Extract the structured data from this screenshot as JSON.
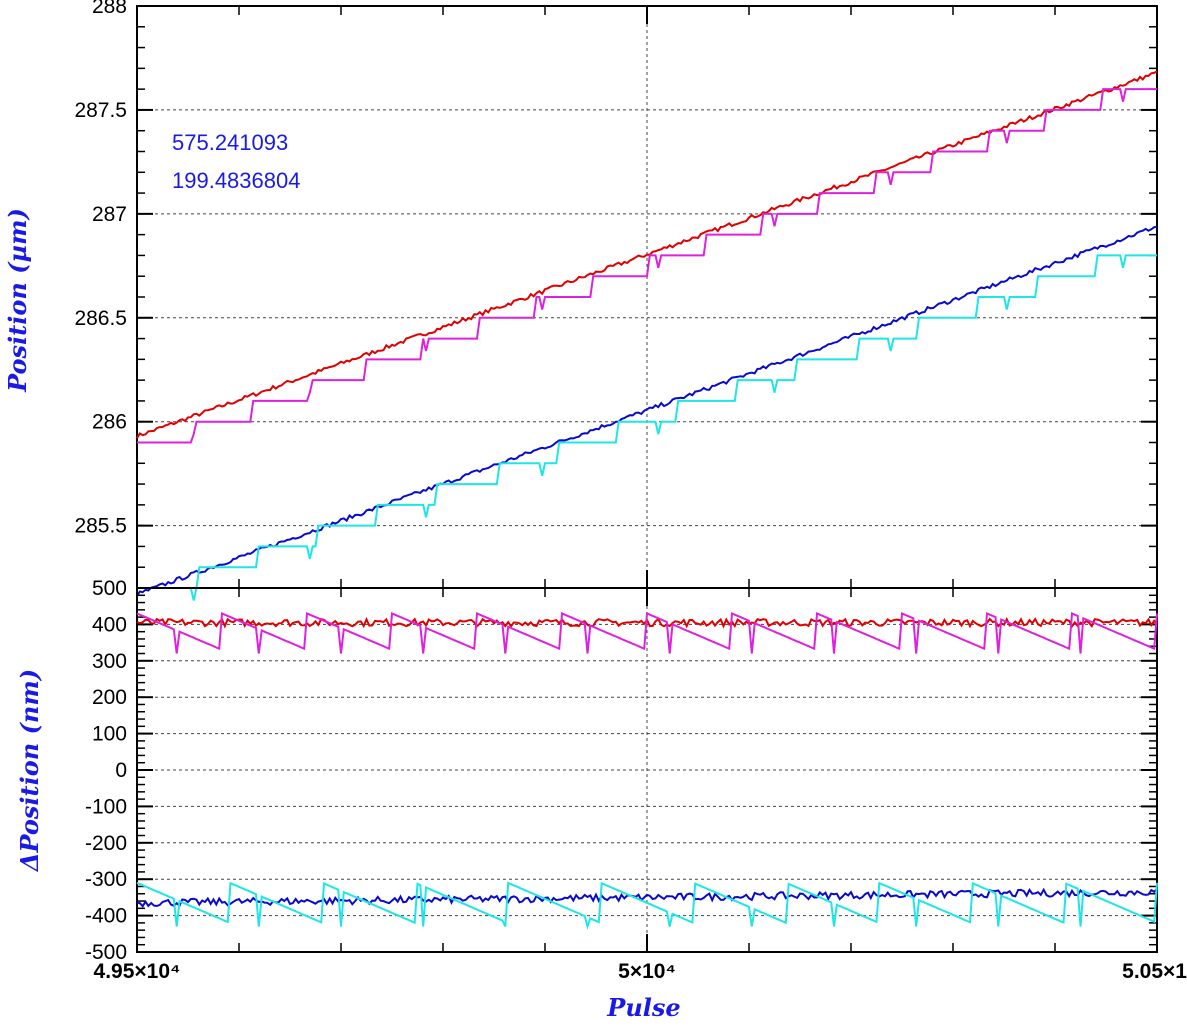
{
  "colors": {
    "red": "#e00000",
    "magenta": "#dd22dd",
    "blue": "#0a0acc",
    "cyan": "#1ee6e6",
    "axis_title": "#1a1ae6"
  },
  "chart_data": [
    {
      "type": "line",
      "panel": "top",
      "ylabel": "Position (µm)",
      "xlim": [
        49500,
        50500
      ],
      "ylim": [
        285.2,
        288
      ],
      "y_ticks": [
        285.5,
        286,
        286.5,
        287,
        287.5,
        288
      ],
      "y_tick_labels": [
        "285.5",
        "286",
        "286.5",
        "287",
        "287.5",
        "288"
      ],
      "grid": true,
      "annotations": [
        "575.241093",
        "199.4836804"
      ],
      "series": [
        {
          "color": "red",
          "style": "smooth",
          "x": [
            49500,
            50500
          ],
          "y": [
            285.93,
            287.68
          ],
          "noise": 0.01
        },
        {
          "color": "magenta",
          "style": "steps",
          "x": [
            49500,
            50500
          ],
          "y": [
            285.9,
            287.7
          ],
          "step": 0.1
        },
        {
          "color": "blue",
          "style": "smooth",
          "x": [
            49500,
            50500
          ],
          "y": [
            285.17,
            286.94
          ],
          "noise": 0.01
        },
        {
          "color": "cyan",
          "style": "steps",
          "x": [
            49500,
            50500
          ],
          "y": [
            285.2,
            286.9
          ],
          "step": 0.1
        }
      ]
    },
    {
      "type": "line",
      "panel": "bottom",
      "xlabel": "Pulse",
      "ylabel": "ΔPosition (nm)",
      "xlim": [
        49500,
        50500
      ],
      "ylim": [
        -500,
        500
      ],
      "x_ticks": [
        49500,
        50000,
        50500
      ],
      "x_tick_labels": [
        "4.95×10⁴",
        "5×10⁴",
        "5.05×1"
      ],
      "y_ticks": [
        -500,
        -400,
        -300,
        -200,
        -100,
        0,
        100,
        200,
        300,
        400,
        500
      ],
      "y_tick_labels": [
        "-500",
        "-400",
        "-300",
        "-200",
        "-100",
        "0",
        "100",
        "200",
        "300",
        "400",
        "500"
      ],
      "grid": true,
      "series": [
        {
          "color": "red",
          "style": "noise",
          "x": [
            49500,
            50500
          ],
          "y": [
            405,
            405
          ],
          "noise": 10
        },
        {
          "color": "magenta",
          "style": "sawtooth",
          "x": [
            49500,
            50500
          ],
          "y": [
            330,
            430
          ],
          "period_count": 12
        },
        {
          "color": "blue",
          "style": "noise",
          "x": [
            49500,
            50500
          ],
          "y": [
            -365,
            -335
          ],
          "noise": 10
        },
        {
          "color": "cyan",
          "style": "sawtooth",
          "x": [
            49500,
            50500
          ],
          "y": [
            -420,
            -310
          ],
          "period_count": 11
        }
      ]
    }
  ]
}
